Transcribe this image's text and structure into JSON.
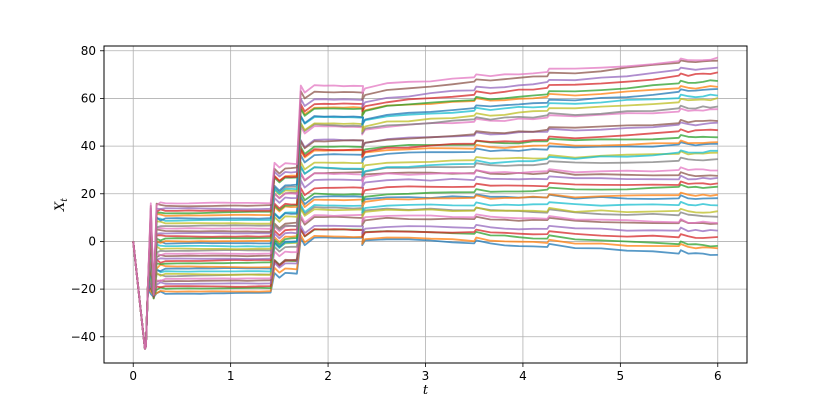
{
  "chart_data": {
    "type": "line",
    "title": "",
    "xlabel": "t",
    "ylabel": {
      "base": "X",
      "sub": "t"
    },
    "xlim": [
      -0.3,
      6.3
    ],
    "ylim": [
      -51,
      82
    ],
    "xticks": [
      0,
      1,
      2,
      3,
      4,
      5,
      6
    ],
    "xtick_labels": [
      "0",
      "1",
      "2",
      "3",
      "4",
      "5",
      "6"
    ],
    "yticks": [
      -40,
      -20,
      0,
      20,
      40,
      60,
      80
    ],
    "ytick_labels": [
      "−40",
      "−20",
      "0",
      "20",
      "40",
      "60",
      "80"
    ],
    "grid": true,
    "legend": "none",
    "series_count": 37,
    "event_times": [
      0.1,
      0.2,
      0.3,
      1.45,
      1.72,
      2.35,
      3.5,
      4.25,
      5.6
    ],
    "start": {
      "x": 0.0,
      "y": 0.0
    },
    "dip": {
      "x": 0.12,
      "y": -45
    },
    "level_after_first_jump": {
      "min": -22,
      "max": 16
    },
    "level_final_at_6": {
      "min": -5,
      "max": 77
    },
    "palette": [
      "#1f77b4",
      "#ff7f0e",
      "#2ca02c",
      "#d62728",
      "#9467bd",
      "#8c564b",
      "#e377c2",
      "#7f7f7f",
      "#bcbd22",
      "#17becf"
    ]
  }
}
